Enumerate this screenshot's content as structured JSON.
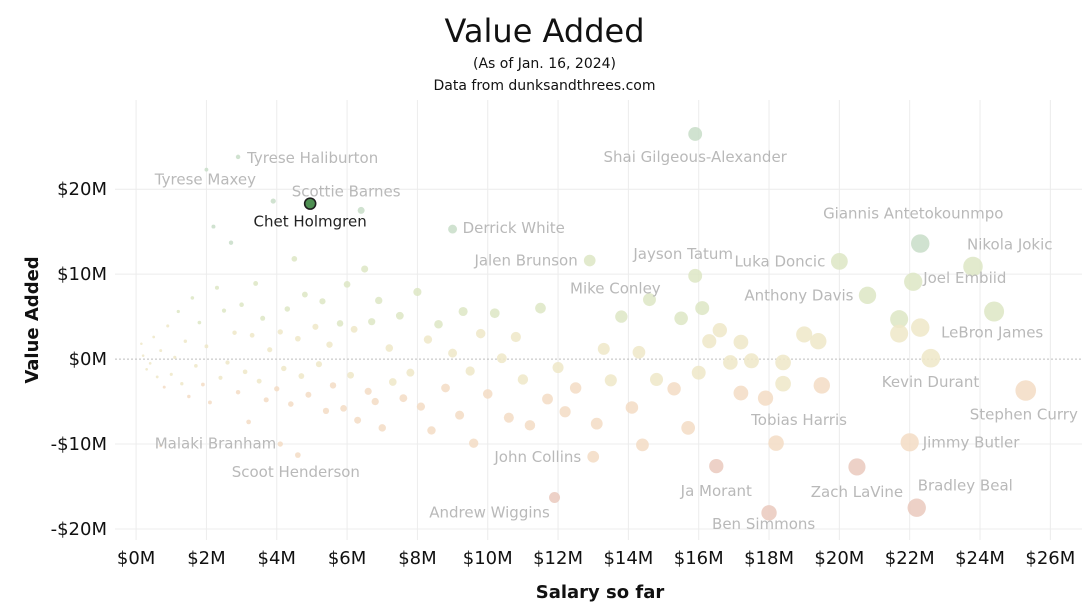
{
  "chart_data": {
    "type": "scatter",
    "title": "Value Added",
    "subtitle": "(As of Jan. 16, 2024)",
    "source": "Data from dunksandthrees.com",
    "xlabel": "Salary so far",
    "ylabel": "Value Added",
    "xlim": [
      -0.6,
      26.9
    ],
    "ylim": [
      -21.3,
      30.5
    ],
    "x_ticks": [
      0,
      2,
      4,
      6,
      8,
      10,
      12,
      14,
      16,
      18,
      20,
      22,
      24,
      26
    ],
    "x_tick_labels": [
      "$0M",
      "$2M",
      "$4M",
      "$6M",
      "$8M",
      "$10M",
      "$12M",
      "$14M",
      "$16M",
      "$18M",
      "$20M",
      "$22M",
      "$24M",
      "$26M"
    ],
    "y_ticks": [
      -20,
      -10,
      0,
      10,
      20
    ],
    "y_tick_labels": [
      "-$20M",
      "-$10M",
      "$0M",
      "$10M",
      "$20M"
    ],
    "grid": true,
    "zero_line": "dotted",
    "colors": {
      "highlight": "#4e8f52",
      "highlight_stroke": "#1e1e1e",
      "positive_high": "#c8ddc8",
      "positive_mid": "#dde6c4",
      "neutral": "#efe7c8",
      "negative_mid": "#f3dcc4",
      "negative_high": "#eac9bd"
    },
    "series": [
      {
        "points": [
          {
            "label": "Shai Gilgeous-Alexander",
            "x": 15.9,
            "y": 26.5
          },
          {
            "label": "Tyrese Haliburton",
            "x": 2.9,
            "y": 23.8
          },
          {
            "label": "Tyrese Maxey",
            "x": 2.0,
            "y": 22.3
          },
          {
            "label": "Scottie Barnes",
            "x": 6.4,
            "y": 17.5
          },
          {
            "label": "Chet Holmgren",
            "x": 4.95,
            "y": 18.3,
            "highlight": true
          },
          {
            "label": "Giannis Antetokounmpo",
            "x": 22.3,
            "y": 13.6
          },
          {
            "label": "Nikola Jokic",
            "x": 23.8,
            "y": 10.9
          },
          {
            "label": "Derrick White",
            "x": 9.0,
            "y": 15.3
          },
          {
            "label": "Jalen Brunson",
            "x": 12.9,
            "y": 11.6
          },
          {
            "label": "Jayson Tatum",
            "x": 15.9,
            "y": 9.8
          },
          {
            "label": "Luka Doncic",
            "x": 20.0,
            "y": 11.5
          },
          {
            "label": "Joel Embiid",
            "x": 22.1,
            "y": 9.1
          },
          {
            "label": "Mike Conley",
            "x": 13.8,
            "y": 5.0
          },
          {
            "label": "Anthony Davis",
            "x": 20.8,
            "y": 7.5
          },
          {
            "label": "LeBron James",
            "x": 24.4,
            "y": 5.6
          },
          {
            "label": "Kevin Durant",
            "x": 22.6,
            "y": 0.1
          },
          {
            "label": "Stephen Curry",
            "x": 25.3,
            "y": -3.7
          },
          {
            "label": "Tobias Harris",
            "x": 18.2,
            "y": -9.9
          },
          {
            "label": "Jimmy Butler",
            "x": 22.0,
            "y": -9.8
          },
          {
            "label": "Zach LaVine",
            "x": 20.5,
            "y": -12.7
          },
          {
            "label": "Bradley Beal",
            "x": 22.2,
            "y": -17.5
          },
          {
            "label": "Ja Morant",
            "x": 16.5,
            "y": -12.6
          },
          {
            "label": "Ben Simmons",
            "x": 18.0,
            "y": -18.1
          },
          {
            "label": "John Collins",
            "x": 13.0,
            "y": -11.5
          },
          {
            "label": "Andrew Wiggins",
            "x": 11.9,
            "y": -16.3
          },
          {
            "label": "Malaki Branham",
            "x": 0.7,
            "y": -10.2
          },
          {
            "label": "Scoot Henderson",
            "x": 4.6,
            "y": -11.3
          },
          {
            "x": 0.2,
            "y": 0.4
          },
          {
            "x": 0.3,
            "y": -1.2
          },
          {
            "x": 0.15,
            "y": 1.8
          },
          {
            "x": 0.4,
            "y": -0.5
          },
          {
            "x": 0.5,
            "y": 2.6
          },
          {
            "x": 0.6,
            "y": -2.1
          },
          {
            "x": 0.7,
            "y": 1.0
          },
          {
            "x": 0.8,
            "y": -3.3
          },
          {
            "x": 0.9,
            "y": 3.9
          },
          {
            "x": 1.0,
            "y": -1.8
          },
          {
            "x": 1.1,
            "y": 0.2
          },
          {
            "x": 1.2,
            "y": 5.6
          },
          {
            "x": 1.3,
            "y": -2.9
          },
          {
            "x": 1.4,
            "y": 2.1
          },
          {
            "x": 1.5,
            "y": -4.4
          },
          {
            "x": 1.6,
            "y": 7.2
          },
          {
            "x": 1.7,
            "y": -0.8
          },
          {
            "x": 1.8,
            "y": 4.3
          },
          {
            "x": 1.9,
            "y": -3.0
          },
          {
            "x": 2.0,
            "y": 1.5
          },
          {
            "x": 2.1,
            "y": -5.1
          },
          {
            "x": 2.2,
            "y": 15.6
          },
          {
            "x": 2.3,
            "y": 8.4
          },
          {
            "x": 2.4,
            "y": -2.2
          },
          {
            "x": 2.5,
            "y": 5.7
          },
          {
            "x": 2.6,
            "y": -0.4
          },
          {
            "x": 2.7,
            "y": 13.7
          },
          {
            "x": 2.8,
            "y": 3.1
          },
          {
            "x": 2.9,
            "y": -3.9
          },
          {
            "x": 3.0,
            "y": 6.4
          },
          {
            "x": 3.1,
            "y": -1.5
          },
          {
            "x": 3.2,
            "y": -7.4
          },
          {
            "x": 3.3,
            "y": 2.8
          },
          {
            "x": 3.4,
            "y": 8.9
          },
          {
            "x": 3.5,
            "y": -2.6
          },
          {
            "x": 3.6,
            "y": 4.8
          },
          {
            "x": 3.7,
            "y": -4.8
          },
          {
            "x": 3.8,
            "y": 1.1
          },
          {
            "x": 3.9,
            "y": 18.6
          },
          {
            "x": 4.0,
            "y": -3.5
          },
          {
            "x": 4.1,
            "y": 3.2
          },
          {
            "x": 4.2,
            "y": -1.1
          },
          {
            "x": 4.3,
            "y": 5.9
          },
          {
            "x": 4.4,
            "y": -5.3
          },
          {
            "x": 4.5,
            "y": 11.8
          },
          {
            "x": 4.6,
            "y": 2.4
          },
          {
            "x": 4.7,
            "y": -2.0
          },
          {
            "x": 4.8,
            "y": 7.6
          },
          {
            "x": 4.9,
            "y": -4.2
          },
          {
            "x": 5.1,
            "y": 3.8
          },
          {
            "x": 5.2,
            "y": -0.6
          },
          {
            "x": 5.3,
            "y": 6.8
          },
          {
            "x": 5.4,
            "y": -6.1
          },
          {
            "x": 5.5,
            "y": 1.7
          },
          {
            "x": 5.6,
            "y": -3.1
          },
          {
            "x": 5.8,
            "y": 4.2
          },
          {
            "x": 5.9,
            "y": -5.8
          },
          {
            "x": 6.0,
            "y": 8.8
          },
          {
            "x": 6.1,
            "y": -1.9
          },
          {
            "x": 6.2,
            "y": 3.5
          },
          {
            "x": 6.3,
            "y": -7.2
          },
          {
            "x": 6.5,
            "y": 10.6
          },
          {
            "x": 6.6,
            "y": -3.8
          },
          {
            "x": 6.7,
            "y": 4.4
          },
          {
            "x": 6.8,
            "y": -5.0
          },
          {
            "x": 6.9,
            "y": 6.9
          },
          {
            "x": 7.0,
            "y": -8.1
          },
          {
            "x": 7.2,
            "y": 1.3
          },
          {
            "x": 7.3,
            "y": -2.7
          },
          {
            "x": 7.5,
            "y": 5.1
          },
          {
            "x": 7.6,
            "y": -4.6
          },
          {
            "x": 7.8,
            "y": -1.6
          },
          {
            "x": 8.0,
            "y": 7.9
          },
          {
            "x": 8.1,
            "y": -5.6
          },
          {
            "x": 8.3,
            "y": 2.3
          },
          {
            "x": 8.4,
            "y": -8.4
          },
          {
            "x": 8.6,
            "y": 4.1
          },
          {
            "x": 8.8,
            "y": -3.4
          },
          {
            "x": 9.0,
            "y": 0.7
          },
          {
            "x": 9.2,
            "y": -6.6
          },
          {
            "x": 9.3,
            "y": 5.6
          },
          {
            "x": 9.5,
            "y": -1.4
          },
          {
            "x": 9.6,
            "y": -9.9
          },
          {
            "x": 9.8,
            "y": 3.0
          },
          {
            "x": 10.0,
            "y": -4.1
          },
          {
            "x": 10.2,
            "y": 5.4
          },
          {
            "x": 10.4,
            "y": 0.1
          },
          {
            "x": 10.6,
            "y": -6.9
          },
          {
            "x": 10.8,
            "y": 2.6
          },
          {
            "x": 11.0,
            "y": -2.4
          },
          {
            "x": 11.2,
            "y": -7.8
          },
          {
            "x": 11.5,
            "y": 6.0
          },
          {
            "x": 11.7,
            "y": -4.7
          },
          {
            "x": 12.0,
            "y": -1.0
          },
          {
            "x": 12.2,
            "y": -6.2
          },
          {
            "x": 12.5,
            "y": -3.4
          },
          {
            "x": 13.1,
            "y": -7.6
          },
          {
            "x": 13.3,
            "y": 1.2
          },
          {
            "x": 13.5,
            "y": -2.5
          },
          {
            "x": 14.1,
            "y": -5.7
          },
          {
            "x": 14.3,
            "y": 0.8
          },
          {
            "x": 14.6,
            "y": 7.0
          },
          {
            "x": 14.8,
            "y": -2.4
          },
          {
            "x": 15.3,
            "y": -3.5
          },
          {
            "x": 15.5,
            "y": 4.8
          },
          {
            "x": 15.7,
            "y": -8.1
          },
          {
            "x": 16.0,
            "y": -1.6
          },
          {
            "x": 16.3,
            "y": 2.1
          },
          {
            "x": 16.6,
            "y": 3.4
          },
          {
            "x": 16.9,
            "y": -0.4
          },
          {
            "x": 17.2,
            "y": 2.0
          },
          {
            "x": 17.5,
            "y": -0.2
          },
          {
            "x": 17.2,
            "y": -4.0
          },
          {
            "x": 17.9,
            "y": -4.6
          },
          {
            "x": 18.4,
            "y": -0.4
          },
          {
            "x": 18.4,
            "y": -2.9
          },
          {
            "x": 19.0,
            "y": 2.9
          },
          {
            "x": 19.4,
            "y": 2.1
          },
          {
            "x": 19.5,
            "y": -3.1
          },
          {
            "x": 21.7,
            "y": 4.7
          },
          {
            "x": 21.7,
            "y": 3.0
          },
          {
            "x": 22.3,
            "y": 3.7
          },
          {
            "x": 14.4,
            "y": -10.1
          },
          {
            "x": 4.1,
            "y": -10.0
          },
          {
            "x": 16.1,
            "y": 6.0
          }
        ]
      }
    ]
  }
}
